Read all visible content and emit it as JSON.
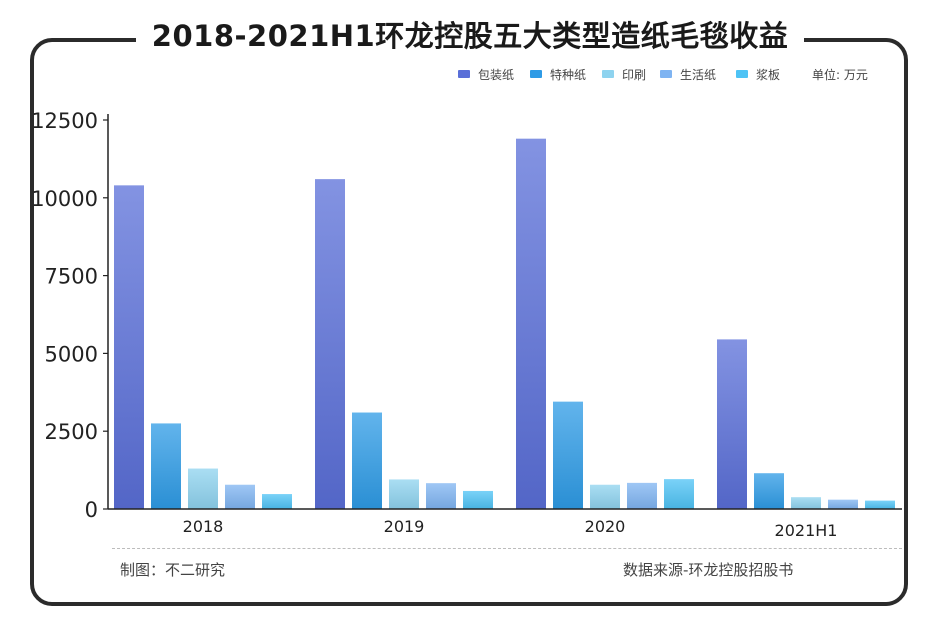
{
  "title": "2018-2021H1环龙控股五大类型造纸毛毯收益",
  "footer": {
    "left": "制图：不二研究",
    "right": "数据来源-环龙控股招股书"
  },
  "colors": {
    "包装纸": "#5a6fd8",
    "特种纸": "#2e9be6",
    "印刷": "#8ed3ef",
    "生活纸": "#7fb4f2",
    "浆板": "#4ec3f5"
  },
  "chart_data": {
    "type": "bar",
    "categories": [
      "2018",
      "2019",
      "2020",
      "2021H1"
    ],
    "series": [
      {
        "name": "包装纸",
        "values": [
          10400,
          10600,
          11900,
          5450
        ]
      },
      {
        "name": "特种纸",
        "values": [
          2750,
          3100,
          3450,
          1150
        ]
      },
      {
        "name": "印刷",
        "values": [
          1300,
          950,
          780,
          380
        ]
      },
      {
        "name": "生活纸",
        "values": [
          780,
          830,
          840,
          300
        ]
      },
      {
        "name": "浆板",
        "values": [
          480,
          580,
          960,
          270
        ]
      }
    ],
    "unit_label": "单位: 万元",
    "ylim": [
      0,
      12500
    ],
    "yticks": [
      "0",
      "2500",
      "5000",
      "7500",
      "10000",
      "12500"
    ],
    "legend_position": "top-right",
    "grid": false
  }
}
